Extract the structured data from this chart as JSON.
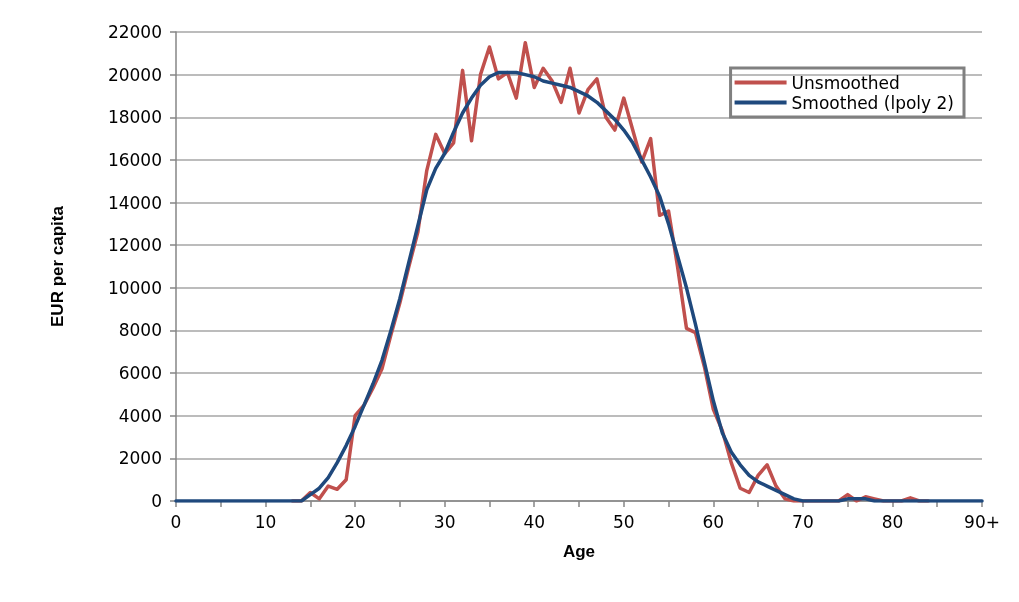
{
  "chart_data": {
    "type": "line",
    "xlabel": "Age",
    "ylabel": "EUR per capita",
    "x": [
      0,
      1,
      2,
      3,
      4,
      5,
      6,
      7,
      8,
      9,
      10,
      11,
      12,
      13,
      14,
      15,
      16,
      17,
      18,
      19,
      20,
      21,
      22,
      23,
      24,
      25,
      26,
      27,
      28,
      29,
      30,
      31,
      32,
      33,
      34,
      35,
      36,
      37,
      38,
      39,
      40,
      41,
      42,
      43,
      44,
      45,
      46,
      47,
      48,
      49,
      50,
      51,
      52,
      53,
      54,
      55,
      56,
      57,
      58,
      59,
      60,
      61,
      62,
      63,
      64,
      65,
      66,
      67,
      68,
      69,
      70,
      71,
      72,
      73,
      74,
      75,
      76,
      77,
      78,
      79,
      80,
      81,
      82,
      83,
      84,
      85,
      86,
      87,
      88,
      89,
      90
    ],
    "series": [
      {
        "name": "Unsmoothed",
        "color": "#c0504d",
        "values": [
          null,
          null,
          null,
          null,
          null,
          null,
          null,
          null,
          null,
          null,
          null,
          null,
          null,
          0,
          0,
          400,
          100,
          700,
          550,
          1000,
          4000,
          4500,
          5300,
          6200,
          7800,
          9300,
          11000,
          12600,
          15500,
          17200,
          16300,
          16800,
          20200,
          16900,
          20000,
          21300,
          19800,
          20100,
          18900,
          21500,
          19400,
          20300,
          19700,
          18700,
          20300,
          18200,
          19300,
          19800,
          18000,
          17400,
          18900,
          17400,
          15900,
          17000,
          13400,
          13600,
          11000,
          8100,
          7900,
          6300,
          4300,
          3300,
          1800,
          600,
          400,
          1200,
          1700,
          700,
          100,
          0,
          0,
          0,
          0,
          0,
          0,
          300,
          0,
          200,
          100,
          0,
          0,
          0,
          150,
          0,
          0,
          null,
          null,
          null,
          null,
          null,
          null
        ]
      },
      {
        "name": "Smoothed (lpoly 2)",
        "color": "#1f497d",
        "values": [
          0,
          0,
          0,
          0,
          0,
          0,
          0,
          0,
          0,
          0,
          0,
          0,
          0,
          0,
          0,
          300,
          600,
          1100,
          1800,
          2600,
          3500,
          4500,
          5500,
          6600,
          8000,
          9500,
          11200,
          12900,
          14600,
          15600,
          16300,
          17300,
          18200,
          18900,
          19500,
          19900,
          20100,
          20100,
          20100,
          20000,
          19900,
          19700,
          19600,
          19500,
          19400,
          19200,
          19000,
          18700,
          18300,
          17900,
          17400,
          16800,
          16000,
          15200,
          14300,
          13000,
          11500,
          10000,
          8300,
          6500,
          4700,
          3200,
          2300,
          1700,
          1200,
          900,
          700,
          500,
          300,
          100,
          0,
          0,
          0,
          0,
          0,
          100,
          100,
          100,
          0,
          0,
          0,
          0,
          0,
          0,
          0,
          0,
          0,
          0,
          0,
          0,
          0
        ]
      }
    ],
    "xlim": [
      0,
      90
    ],
    "xticks": [
      0,
      {
        "value": 5,
        "label": null
      },
      10,
      {
        "value": 15,
        "label": null
      },
      20,
      {
        "value": 25,
        "label": null
      },
      30,
      {
        "value": 35,
        "label": null
      },
      40,
      {
        "value": 45,
        "label": null
      },
      50,
      {
        "value": 55,
        "label": null
      },
      60,
      {
        "value": 65,
        "label": null
      },
      70,
      {
        "value": 75,
        "label": null
      },
      80,
      {
        "value": 85,
        "label": null
      },
      {
        "value": 90,
        "label": "90+"
      }
    ],
    "ylim": [
      0,
      22000
    ],
    "yticks": [
      0,
      2000,
      4000,
      6000,
      8000,
      10000,
      12000,
      14000,
      16000,
      18000,
      20000,
      22000
    ],
    "grid": "y",
    "legend": "top right",
    "marker": "none",
    "line_style": "solid"
  }
}
